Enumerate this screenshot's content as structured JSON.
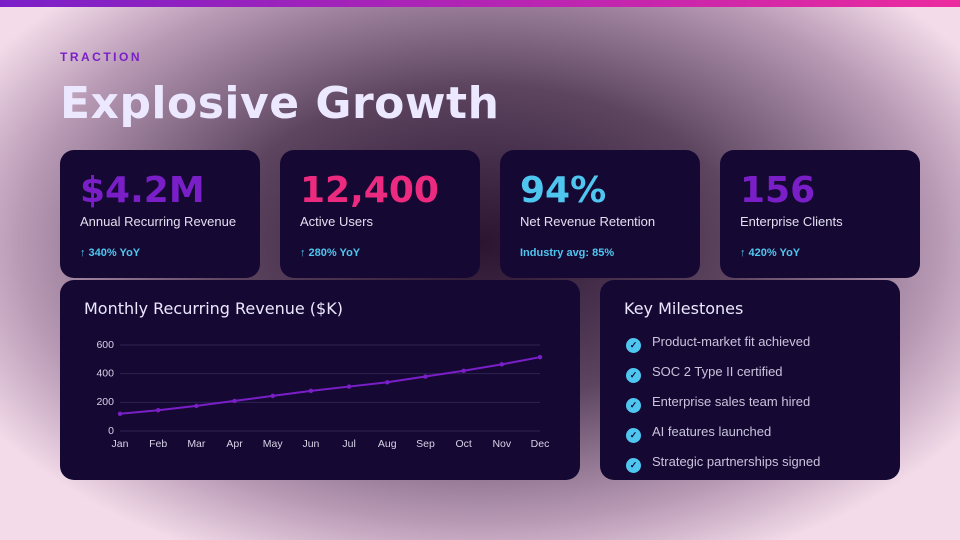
{
  "header": {
    "eyebrow": "TRACTION",
    "title": "Explosive Growth"
  },
  "kpis": [
    {
      "value": "$4.2M",
      "label": "Annual Recurring Revenue",
      "note": "↑ 340% YoY",
      "color": "#7a1fc8"
    },
    {
      "value": "12,400",
      "label": "Active Users",
      "note": "↑ 280% YoY",
      "color": "#ec2a7f"
    },
    {
      "value": "94%",
      "label": "Net Revenue Retention",
      "note": "Industry avg: 85%",
      "color": "#4fc6f0"
    },
    {
      "value": "156",
      "label": "Enterprise Clients",
      "note": "↑ 420% YoY",
      "color": "#7a1fc8"
    }
  ],
  "chart_data": {
    "type": "line",
    "title": "Monthly Recurring Revenue ($K)",
    "categories": [
      "Jan",
      "Feb",
      "Mar",
      "Apr",
      "May",
      "Jun",
      "Jul",
      "Aug",
      "Sep",
      "Oct",
      "Nov",
      "Dec"
    ],
    "values": [
      120,
      145,
      175,
      210,
      245,
      280,
      310,
      340,
      380,
      420,
      465,
      515
    ],
    "color": "#7a1fc8",
    "ylim": [
      0,
      600
    ],
    "yticks": [
      0,
      200,
      400,
      600
    ],
    "grid": true
  },
  "milestones": {
    "title": "Key Milestones",
    "items": [
      "Product-market fit achieved",
      "SOC 2 Type II certified",
      "Enterprise sales team hired",
      "AI features launched",
      "Strategic partnerships signed"
    ]
  }
}
